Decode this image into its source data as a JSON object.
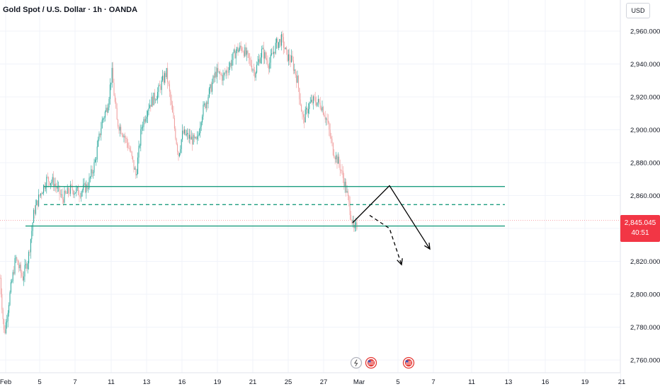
{
  "header": {
    "symbol_title": "Gold Spot / U.S. Dollar · 1h · OANDA",
    "currency": "USD"
  },
  "price_tag": {
    "price": "2,845.045",
    "countdown": "40:51",
    "color": "#f23645"
  },
  "colors": {
    "up": "#26a69a",
    "down": "#ef9a9a",
    "level_line": "#1e9e80",
    "arrows": "#000000",
    "event_icon": "#e53935"
  },
  "event_icons": [
    "flash-event-icon",
    "us-flag-event-icon",
    "us-flag-event-icon"
  ],
  "chart_data": {
    "type": "candlestick",
    "y_axis": {
      "range": [
        2750,
        2975
      ],
      "ticks": [
        2760,
        2780,
        2800,
        2820,
        2840,
        2860,
        2880,
        2900,
        2920,
        2940,
        2960
      ],
      "tick_labels": [
        "2,760.000",
        "2,780.000",
        "2,800.000",
        "2,820.000",
        "2,840.000",
        "2,860.000",
        "2,880.000",
        "2,900.000",
        "2,920.000",
        "2,940.000",
        "2,960.000"
      ]
    },
    "x_axis": {
      "tick_labels": [
        "Feb",
        "5",
        "7",
        "11",
        "13",
        "16",
        "19",
        "21",
        "25",
        "27",
        "Mar",
        "5",
        "7",
        "11",
        "13",
        "16",
        "19",
        "21"
      ]
    },
    "price_path": [
      [
        0,
        2810
      ],
      [
        6,
        2775
      ],
      [
        14,
        2800
      ],
      [
        22,
        2822
      ],
      [
        32,
        2810
      ],
      [
        40,
        2822
      ],
      [
        48,
        2850
      ],
      [
        56,
        2860
      ],
      [
        66,
        2870
      ],
      [
        76,
        2868
      ],
      [
        88,
        2858
      ],
      [
        100,
        2864
      ],
      [
        112,
        2862
      ],
      [
        124,
        2866
      ],
      [
        134,
        2880
      ],
      [
        144,
        2905
      ],
      [
        152,
        2915
      ],
      [
        158,
        2935
      ],
      [
        165,
        2905
      ],
      [
        174,
        2898
      ],
      [
        183,
        2888
      ],
      [
        192,
        2872
      ],
      [
        200,
        2902
      ],
      [
        210,
        2915
      ],
      [
        222,
        2922
      ],
      [
        235,
        2935
      ],
      [
        245,
        2905
      ],
      [
        252,
        2885
      ],
      [
        258,
        2898
      ],
      [
        268,
        2895
      ],
      [
        278,
        2892
      ],
      [
        285,
        2910
      ],
      [
        295,
        2922
      ],
      [
        305,
        2935
      ],
      [
        315,
        2932
      ],
      [
        325,
        2940
      ],
      [
        333,
        2948
      ],
      [
        342,
        2950
      ],
      [
        352,
        2942
      ],
      [
        360,
        2935
      ],
      [
        370,
        2948
      ],
      [
        380,
        2940
      ],
      [
        390,
        2952
      ],
      [
        398,
        2955
      ],
      [
        405,
        2945
      ],
      [
        412,
        2942
      ],
      [
        420,
        2930
      ],
      [
        428,
        2905
      ],
      [
        436,
        2915
      ],
      [
        444,
        2918
      ],
      [
        454,
        2915
      ],
      [
        462,
        2905
      ],
      [
        470,
        2888
      ],
      [
        480,
        2878
      ],
      [
        488,
        2865
      ],
      [
        494,
        2852
      ],
      [
        500,
        2838
      ],
      [
        504,
        2842
      ]
    ],
    "levels": [
      {
        "style": "solid",
        "price": 2865.5,
        "x_range": [
          "Feb 5",
          "Mar 13"
        ]
      },
      {
        "style": "dashed",
        "price": 2854.5,
        "x_range": [
          "Feb 5",
          "Mar 13"
        ]
      },
      {
        "style": "solid",
        "price": 2841.5,
        "x_range": [
          "Feb 4",
          "Mar 13"
        ]
      }
    ],
    "projections": [
      {
        "style": "solid",
        "points": [
          [
            2843.5,
            "Feb 28"
          ],
          [
            2866,
            "Mar 4"
          ],
          [
            2827.5,
            "Mar 8"
          ]
        ]
      },
      {
        "style": "dashed",
        "points": [
          [
            2848,
            "Mar 3"
          ],
          [
            2840,
            "Mar 4"
          ],
          [
            2818,
            "Mar 5"
          ]
        ]
      }
    ],
    "current_price": 2845.045
  }
}
